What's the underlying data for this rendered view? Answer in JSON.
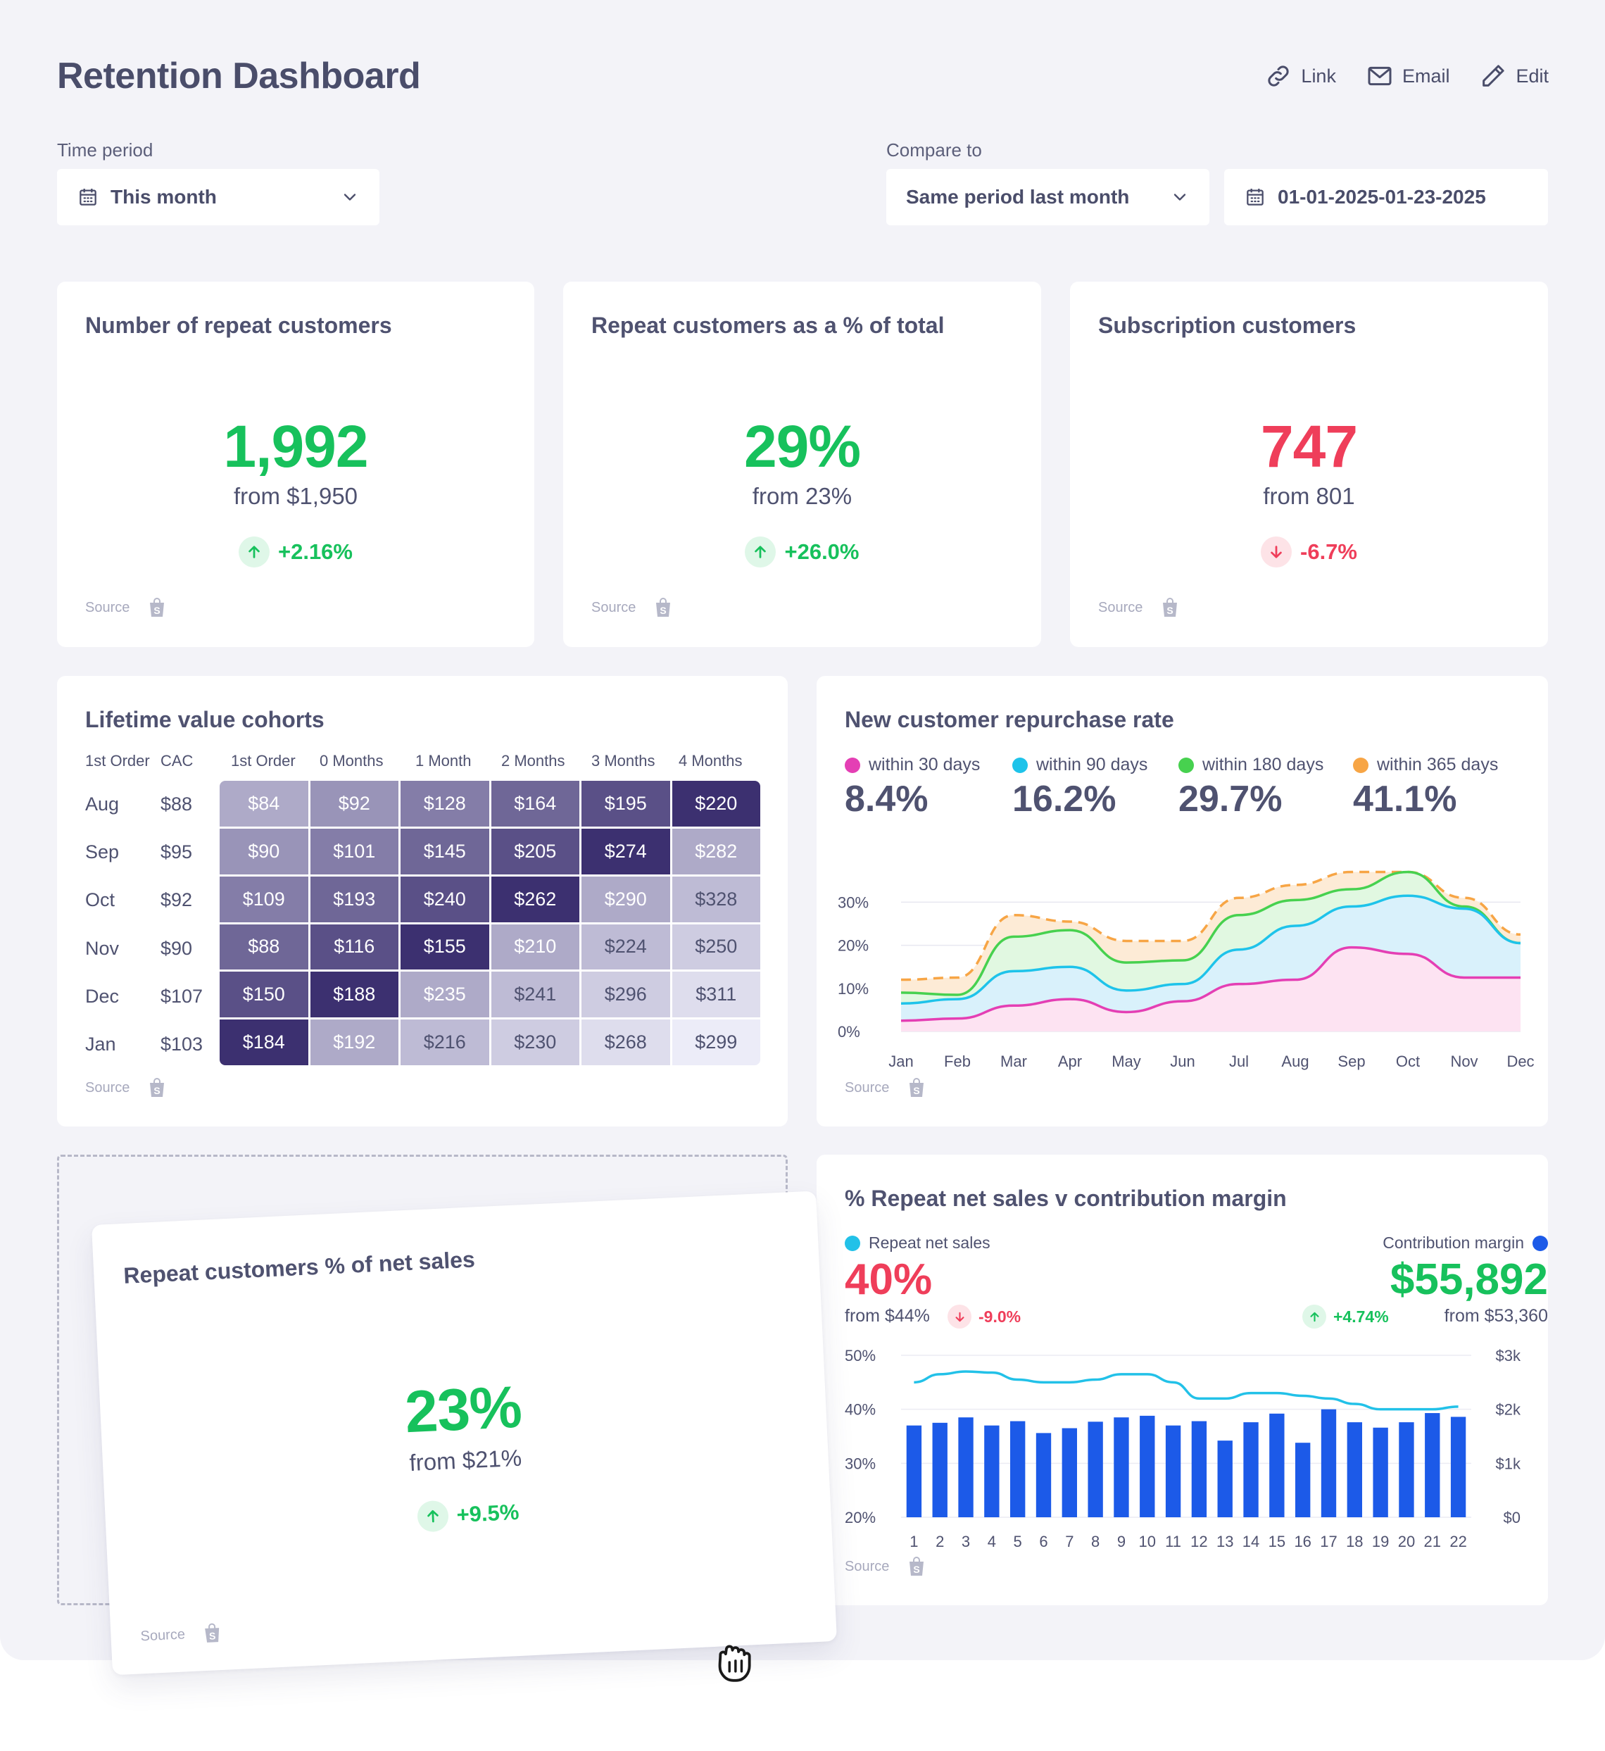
{
  "header": {
    "title": "Retention Dashboard",
    "actions": [
      {
        "label": "Link",
        "icon": "link-icon"
      },
      {
        "label": "Email",
        "icon": "mail-icon"
      },
      {
        "label": "Edit",
        "icon": "pencil-icon"
      }
    ]
  },
  "filters": {
    "time_period_label": "Time period",
    "time_period_value": "This month",
    "compare_label": "Compare to",
    "compare_value": "Same period last month",
    "date_range": "01-01-2025-01-23-2025"
  },
  "source_label": "Source",
  "kpis": [
    {
      "title": "Number of repeat customers",
      "value": "1,992",
      "from": "from $1,950",
      "change": "+2.16%",
      "trend": "up"
    },
    {
      "title": "Repeat customers as a % of total",
      "value": "29%",
      "from": "from 23%",
      "change": "+26.0%",
      "trend": "up"
    },
    {
      "title": "Subscription customers",
      "value": "747",
      "from": "from 801",
      "change": "-6.7%",
      "trend": "down"
    }
  ],
  "cohorts": {
    "title": "Lifetime value cohorts",
    "headers": [
      "1st Order",
      "CAC",
      "1st Order",
      "0 Months",
      "1 Month",
      "2 Months",
      "3 Months",
      "4 Months"
    ],
    "rows": [
      {
        "month": "Aug",
        "cac": "$88",
        "values": [
          "$84",
          "$92",
          "$128",
          "$164",
          "$195",
          "$220"
        ]
      },
      {
        "month": "Sep",
        "cac": "$95",
        "values": [
          "$90",
          "$101",
          "$145",
          "$205",
          "$274",
          "$282"
        ]
      },
      {
        "month": "Oct",
        "cac": "$92",
        "values": [
          "$109",
          "$193",
          "$240",
          "$262",
          "$290",
          "$328"
        ]
      },
      {
        "month": "Nov",
        "cac": "$90",
        "values": [
          "$88",
          "$116",
          "$155",
          "$210",
          "$224",
          "$250"
        ]
      },
      {
        "month": "Dec",
        "cac": "$107",
        "values": [
          "$150",
          "$188",
          "$235",
          "$241",
          "$296",
          "$311"
        ]
      },
      {
        "month": "Jan",
        "cac": "$103",
        "values": [
          "$184",
          "$192",
          "$216",
          "$230",
          "$268",
          "$299"
        ]
      }
    ]
  },
  "repurchase": {
    "title": "New customer repurchase rate",
    "legend": [
      {
        "label": "within 30 days",
        "value": "8.4%",
        "color": "#e43fb4"
      },
      {
        "label": "within 90 days",
        "value": "16.2%",
        "color": "#1ec3ea"
      },
      {
        "label": "within 180 days",
        "value": "29.7%",
        "color": "#47d14f"
      },
      {
        "label": "within 365 days",
        "value": "41.1%",
        "color": "#f7a545"
      }
    ]
  },
  "repeat_sales": {
    "title": "% Repeat net sales v contribution margin",
    "left_legend": "Repeat net sales",
    "left_color": "#22c1e8",
    "left_value": "40%",
    "left_from": "from $44%",
    "left_change": "-9.0%",
    "right_legend": "Contribution margin",
    "right_color": "#1c5ae8",
    "right_value": "$55,892",
    "right_from": "from $53,360",
    "right_change": "+4.74%"
  },
  "floating_card": {
    "title": "Repeat customers % of net sales",
    "value": "23%",
    "from": "from $21%",
    "change": "+9.5%"
  },
  "chart_data": [
    {
      "type": "area",
      "stacked": false,
      "categories": [
        "Jan",
        "Feb",
        "Mar",
        "Apr",
        "May",
        "Jun",
        "Jul",
        "Aug",
        "Sep",
        "Oct",
        "Nov",
        "Dec"
      ],
      "ylim": [
        0,
        30
      ],
      "yticks": [
        "0%",
        "10%",
        "20%",
        "30%"
      ],
      "grid": true,
      "series": [
        {
          "name": "within 365 days",
          "values": [
            12,
            12.5,
            27,
            25.5,
            21,
            21,
            31,
            34,
            37,
            37,
            31,
            22.5
          ]
        },
        {
          "name": "within 180 days",
          "values": [
            9,
            8.5,
            22,
            23.5,
            16,
            16.5,
            27,
            30.5,
            33,
            37,
            29,
            20.5
          ]
        },
        {
          "name": "within 90 days",
          "values": [
            6.5,
            7.5,
            14,
            15,
            9.5,
            11,
            19,
            24.5,
            29,
            31.5,
            28.5,
            20.5
          ]
        },
        {
          "name": "within 30 days",
          "values": [
            2.5,
            3,
            6,
            7.5,
            4.5,
            7,
            11,
            12,
            19.5,
            18,
            12.5,
            12.5
          ]
        }
      ]
    },
    {
      "type": "bar",
      "categories": [
        "1",
        "2",
        "3",
        "4",
        "5",
        "6",
        "7",
        "8",
        "9",
        "10",
        "11",
        "12",
        "13",
        "14",
        "15",
        "16",
        "17",
        "18",
        "19",
        "20",
        "21",
        "22"
      ],
      "y_left_ticks": [
        "20%",
        "30%",
        "40%",
        "50%"
      ],
      "y_right_ticks": [
        "$0",
        "$1k",
        "$2k",
        "$3k"
      ],
      "ylim_right": [
        0,
        3000
      ],
      "ylim_left": [
        20,
        50
      ],
      "series": [
        {
          "name": "Contribution margin",
          "axis": "right",
          "values": [
            1700,
            1750,
            1850,
            1700,
            1780,
            1560,
            1650,
            1770,
            1850,
            1880,
            1700,
            1780,
            1420,
            1760,
            1920,
            1380,
            2000,
            1760,
            1660,
            1760,
            1930,
            1860
          ]
        },
        {
          "name": "Repeat net sales",
          "axis": "left",
          "line": true,
          "values": [
            45,
            46.5,
            47,
            46.8,
            45.5,
            45,
            45,
            45.5,
            46.5,
            46.5,
            45,
            42,
            42,
            43,
            43,
            42.5,
            42,
            41,
            40,
            40,
            40,
            40.5
          ]
        }
      ]
    }
  ]
}
